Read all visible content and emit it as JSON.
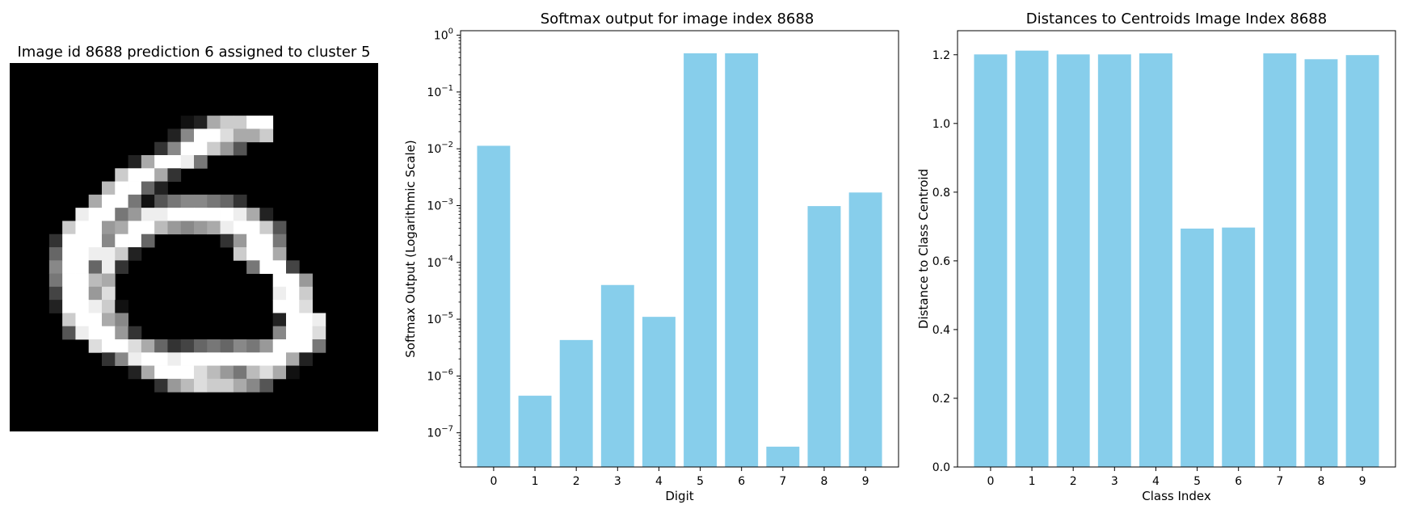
{
  "image_panel": {
    "title": "Image id 8688 prediction 6 assigned to cluster 5",
    "pixels": [
      "0000000000000000000000000000",
      "0000000000000000000000000000",
      "0000000000000000000000000000",
      "0000000000000000000000000000",
      "000000000000012ACCFF00000000",
      "00000000000028FFDAAC00000000",
      "0000000000038FFC9500000000000",
      "0000000002AFFE70000000000000",
      "00000000CFFA3000000000000000",
      "0000000BFF6200000000000000000",
      "000000AFF7157887630000000000",
      "00000EFF79EEFFFFFEA200000000",
      "0000CFF9AFFB989AEFFC5000000",
      "0003FFF8FF60000039FF700000",
      "0006FFEEC20000000CFFA0000000",
      "0008FF6E30000000007FF4000000",
      "0007FFBA000000000000FF900000",
      "0004FF9D000000000000EFC00000",
      "0002FFEC100000000000FFD00000",
      "0000CFFA8000000000002FFE0000",
      "00005EFF9300000000008FFD0000",
      "000000DFFDA634676879FFF70000",
      "000000038EFFEFFFFFFFFA200000",
      "0000000002AFFFDB97BDA1000000",
      "0000000000039BDCCA8500000000",
      "0000000000000000000000000000",
      "0000000000000000000000000000",
      "0000000000000000000000000000"
    ]
  },
  "chart_data": [
    {
      "type": "bar",
      "title": "Softmax output for image index 8688",
      "xlabel": "Digit",
      "ylabel": "Softmax Output (Logarithmic Scale)",
      "yscale": "log",
      "ylim": [
        2.5e-08,
        1.2
      ],
      "categories": [
        "0",
        "1",
        "2",
        "3",
        "4",
        "5",
        "6",
        "7",
        "8",
        "9"
      ],
      "values": [
        0.0113,
        4.5e-07,
        4.3e-06,
        4e-05,
        1.1e-05,
        0.48,
        0.48,
        5.7e-08,
        0.00098,
        0.0017
      ],
      "yticks": [
        {
          "value": 1e-07,
          "base": "10",
          "exp": "−7"
        },
        {
          "value": 1e-06,
          "base": "10",
          "exp": "−6"
        },
        {
          "value": 1e-05,
          "base": "10",
          "exp": "−5"
        },
        {
          "value": 0.0001,
          "base": "10",
          "exp": "−4"
        },
        {
          "value": 0.001,
          "base": "10",
          "exp": "−3"
        },
        {
          "value": 0.01,
          "base": "10",
          "exp": "−2"
        },
        {
          "value": 0.1,
          "base": "10",
          "exp": "−1"
        },
        {
          "value": 1,
          "base": "10",
          "exp": "0"
        }
      ],
      "bar_color": "#87CEEB"
    },
    {
      "type": "bar",
      "title": "Distances to Centroids Image Index 8688",
      "xlabel": "Class Index",
      "ylabel": "Distance to Class Centroid",
      "yscale": "linear",
      "ylim": [
        0,
        1.27
      ],
      "categories": [
        "0",
        "1",
        "2",
        "3",
        "4",
        "5",
        "6",
        "7",
        "8",
        "9"
      ],
      "values": [
        1.201,
        1.212,
        1.201,
        1.201,
        1.204,
        0.694,
        0.697,
        1.204,
        1.187,
        1.199
      ],
      "yticks": [
        {
          "value": 0.0,
          "label": "0.0"
        },
        {
          "value": 0.2,
          "label": "0.2"
        },
        {
          "value": 0.4,
          "label": "0.4"
        },
        {
          "value": 0.6,
          "label": "0.6"
        },
        {
          "value": 0.8,
          "label": "0.8"
        },
        {
          "value": 1.0,
          "label": "1.0"
        },
        {
          "value": 1.2,
          "label": "1.2"
        }
      ],
      "bar_color": "#87CEEB"
    }
  ]
}
